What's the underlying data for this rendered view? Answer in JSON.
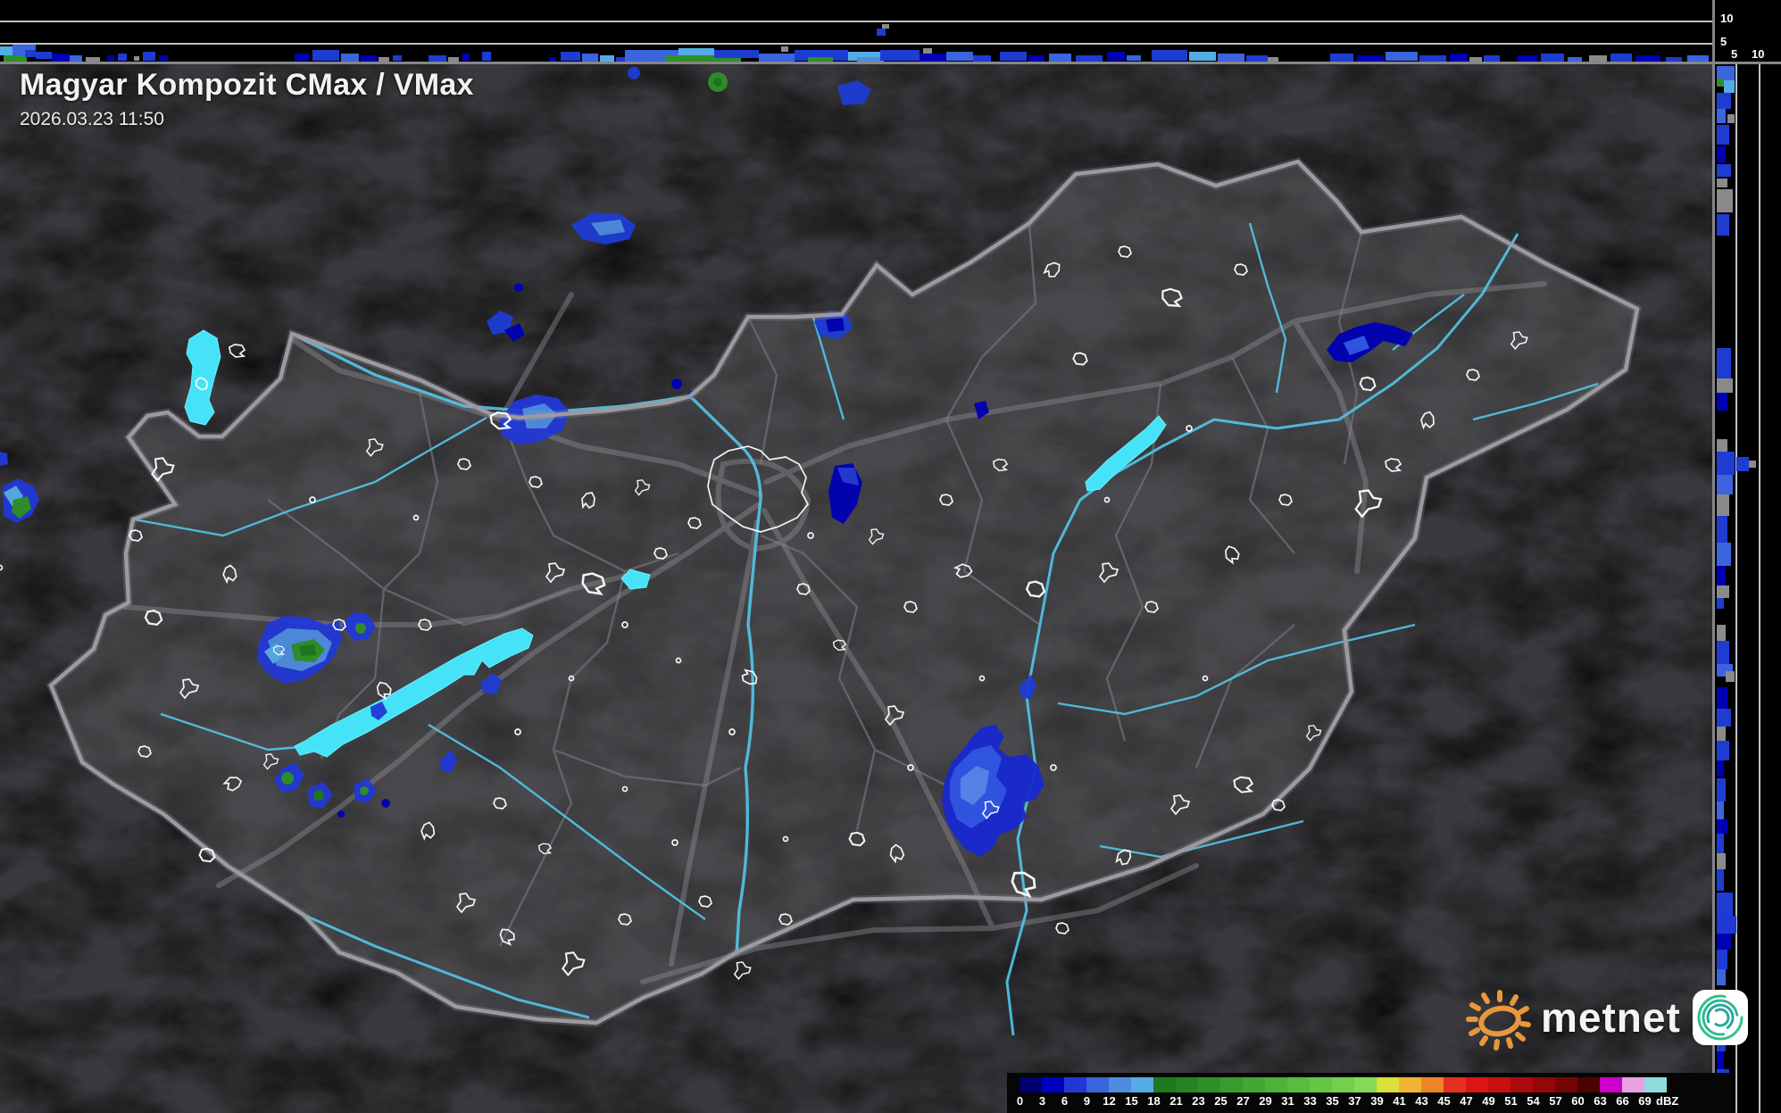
{
  "header": {
    "title": "Magyar Kompozit CMax / VMax",
    "timestamp": "2026.03.23 11:50"
  },
  "axes": {
    "top_strip_height_labels": [
      "10",
      "5"
    ],
    "right_strip_height_labels": [
      "5",
      "10"
    ]
  },
  "legend": {
    "unit": "dBZ",
    "cells": [
      "#00006E",
      "#0000BE",
      "#2238D6",
      "#3C64DC",
      "#4E8CE0",
      "#54ACE4",
      "#1E781E",
      "#268424",
      "#2E9028",
      "#389C2C",
      "#42A832",
      "#4CB238",
      "#58BC3E",
      "#64C644",
      "#74D04C",
      "#84DA54",
      "#DCDE3A",
      "#F0B434",
      "#EE8428",
      "#E53020",
      "#DC1414",
      "#C61010",
      "#AC0B0E",
      "#920708",
      "#740404",
      "#4A0202",
      "#CC00CA",
      "#EAA0E2",
      "#8EDCDC"
    ],
    "labels": [
      "0",
      "3",
      "6",
      "9",
      "12",
      "15",
      "18",
      "21",
      "23",
      "25",
      "27",
      "29",
      "31",
      "33",
      "35",
      "37",
      "39",
      "41",
      "43",
      "45",
      "47",
      "49",
      "51",
      "54",
      "57",
      "60",
      "63",
      "66",
      "69",
      "dBZ"
    ]
  },
  "logo": {
    "text": "metnet"
  },
  "colors": {
    "background": "#000000",
    "land": "#4B4B4F",
    "outside_land": "#3A3A3E",
    "country_border": "#9A9AA0",
    "county_border": "#69696E",
    "road": "#8F8F94",
    "river": "#52C6EA",
    "lake": "#46E3F8",
    "city_outline": "#FFFFFF",
    "logo_orange": "#E8973C",
    "logo_teal": "#2AA79B"
  }
}
